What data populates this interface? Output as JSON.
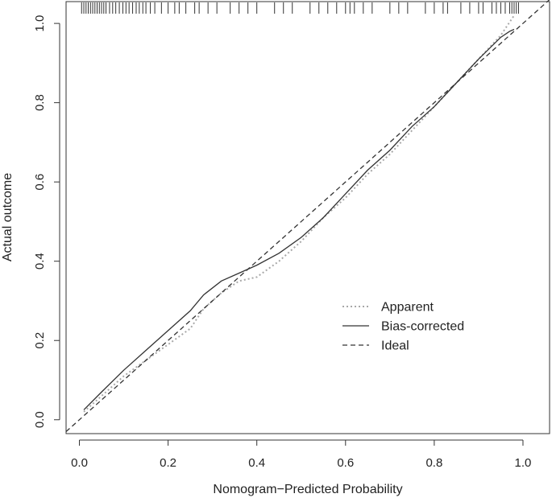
{
  "chart_data": {
    "type": "line",
    "title": "",
    "xlabel": "Nomogram−Predicted Probability",
    "ylabel": "Actual outcome",
    "xlim": [
      -0.03,
      1.06
    ],
    "ylim": [
      -0.035,
      1.055
    ],
    "xticks": [
      0.0,
      0.2,
      0.4,
      0.6,
      0.8,
      1.0
    ],
    "xtick_labels": [
      "0.0",
      "0.2",
      "0.4",
      "0.6",
      "0.8",
      "1.0"
    ],
    "yticks": [
      0.0,
      0.2,
      0.4,
      0.6,
      0.8,
      1.0
    ],
    "ytick_labels": [
      "0.0",
      "0.2",
      "0.4",
      "0.6",
      "0.8",
      "1.0"
    ],
    "grid": false,
    "legend_position": "bottom-right",
    "series": [
      {
        "name": "Apparent",
        "style": "dotted",
        "color": "#a8a8a8",
        "x": [
          0.01,
          0.05,
          0.1,
          0.15,
          0.2,
          0.25,
          0.28,
          0.32,
          0.36,
          0.4,
          0.45,
          0.5,
          0.55,
          0.6,
          0.65,
          0.7,
          0.75,
          0.8,
          0.85,
          0.9,
          0.95,
          0.98
        ],
        "y": [
          0.02,
          0.06,
          0.11,
          0.15,
          0.19,
          0.23,
          0.28,
          0.32,
          0.35,
          0.36,
          0.4,
          0.45,
          0.51,
          0.56,
          0.62,
          0.67,
          0.73,
          0.79,
          0.85,
          0.91,
          0.97,
          1.02
        ]
      },
      {
        "name": "Bias-corrected",
        "style": "solid",
        "color": "#333333",
        "x": [
          0.01,
          0.05,
          0.1,
          0.15,
          0.2,
          0.25,
          0.28,
          0.32,
          0.36,
          0.4,
          0.45,
          0.5,
          0.55,
          0.6,
          0.65,
          0.7,
          0.75,
          0.8,
          0.85,
          0.9,
          0.95,
          0.97,
          0.98
        ],
        "y": [
          0.025,
          0.07,
          0.125,
          0.175,
          0.225,
          0.275,
          0.315,
          0.35,
          0.37,
          0.39,
          0.42,
          0.46,
          0.51,
          0.57,
          0.63,
          0.68,
          0.74,
          0.79,
          0.85,
          0.91,
          0.965,
          0.98,
          0.985
        ]
      },
      {
        "name": "Ideal",
        "style": "dashed",
        "color": "#333333",
        "x": [
          -0.03,
          1.06
        ],
        "y": [
          -0.03,
          1.06
        ]
      }
    ],
    "rug_x": [
      0.005,
      0.01,
      0.015,
      0.02,
      0.025,
      0.03,
      0.035,
      0.04,
      0.045,
      0.05,
      0.055,
      0.06,
      0.068,
      0.075,
      0.082,
      0.09,
      0.098,
      0.105,
      0.112,
      0.12,
      0.128,
      0.135,
      0.143,
      0.15,
      0.16,
      0.17,
      0.185,
      0.2,
      0.215,
      0.225,
      0.24,
      0.26,
      0.27,
      0.29,
      0.31,
      0.34,
      0.36,
      0.38,
      0.4,
      0.44,
      0.46,
      0.48,
      0.52,
      0.54,
      0.56,
      0.58,
      0.6,
      0.61,
      0.62,
      0.64,
      0.66,
      0.7,
      0.72,
      0.74,
      0.78,
      0.8,
      0.82,
      0.83,
      0.86,
      0.88,
      0.9,
      0.91,
      0.93,
      0.94,
      0.95,
      0.96,
      0.97,
      0.975,
      0.98,
      0.985,
      0.99
    ]
  }
}
